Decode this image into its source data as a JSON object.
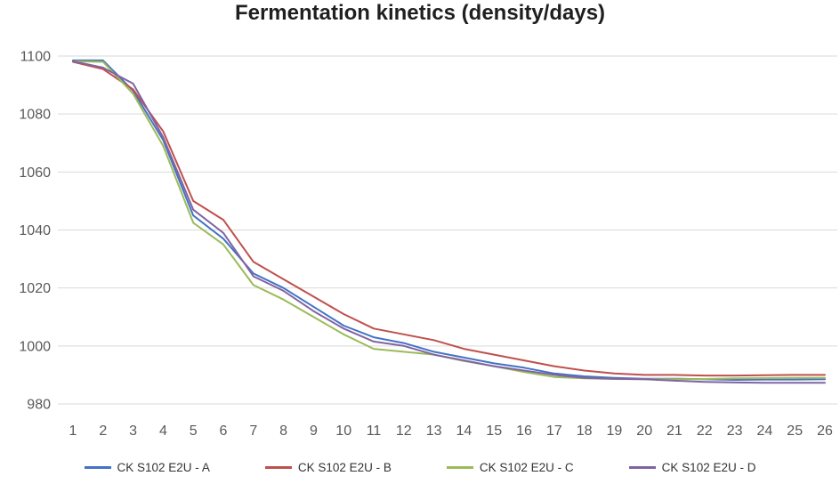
{
  "chart_data": {
    "type": "line",
    "title": "Fermentation kinetics (density/days)",
    "xlabel": "",
    "ylabel": "",
    "x": [
      1,
      2,
      3,
      4,
      5,
      6,
      7,
      8,
      9,
      10,
      11,
      12,
      13,
      14,
      15,
      16,
      17,
      18,
      19,
      20,
      21,
      22,
      23,
      24,
      25,
      26
    ],
    "ylim": [
      980,
      1100
    ],
    "yticks": [
      980,
      1000,
      1020,
      1040,
      1060,
      1080,
      1100
    ],
    "grid": "horizontal-only",
    "legend_position": "bottom",
    "series": [
      {
        "name": "CK S102 E2U - A",
        "color": "#4472C4",
        "values": [
          1098.5,
          1098.5,
          1088,
          1071,
          1045,
          1037,
          1025,
          1020,
          1013.5,
          1007,
          1003,
          1001,
          998,
          996,
          994,
          992.5,
          990.5,
          989.5,
          989,
          988.7,
          988.7,
          988.5,
          988.3,
          988.4,
          988.4,
          988.5
        ]
      },
      {
        "name": "CK S102 E2U - B",
        "color": "#C0504D",
        "values": [
          1098,
          1095.5,
          1088.5,
          1074,
          1050,
          1043.5,
          1029,
          1023,
          1017,
          1011,
          1006,
          1004,
          1002,
          999,
          997,
          995,
          993,
          991.5,
          990.5,
          990,
          990,
          989.8,
          989.8,
          989.9,
          990,
          990
        ]
      },
      {
        "name": "CK S102 E2U - C",
        "color": "#9BBB59",
        "values": [
          1098.2,
          1098,
          1087,
          1069,
          1042.5,
          1035,
          1021,
          1016,
          1010,
          1004,
          999,
          998,
          997,
          994.8,
          993,
          991,
          989.3,
          988.8,
          988.6,
          988.5,
          988.5,
          988.6,
          988.8,
          988.9,
          989,
          989
        ]
      },
      {
        "name": "CK S102 E2U - D",
        "color": "#8064A2",
        "values": [
          1098.2,
          1096,
          1090.5,
          1072,
          1047,
          1039,
          1024,
          1019,
          1012,
          1006,
          1001.5,
          1000,
          997,
          995,
          993,
          991.5,
          990,
          989,
          988.7,
          988.5,
          988,
          987.6,
          987.4,
          987.3,
          987.3,
          987.3
        ]
      }
    ],
    "colors": {
      "background": "#FFFFFF",
      "gridline": "#D9D9D9",
      "tick_label": "#595959",
      "title": "#1F1F1F",
      "legend_text": "#333333"
    }
  }
}
